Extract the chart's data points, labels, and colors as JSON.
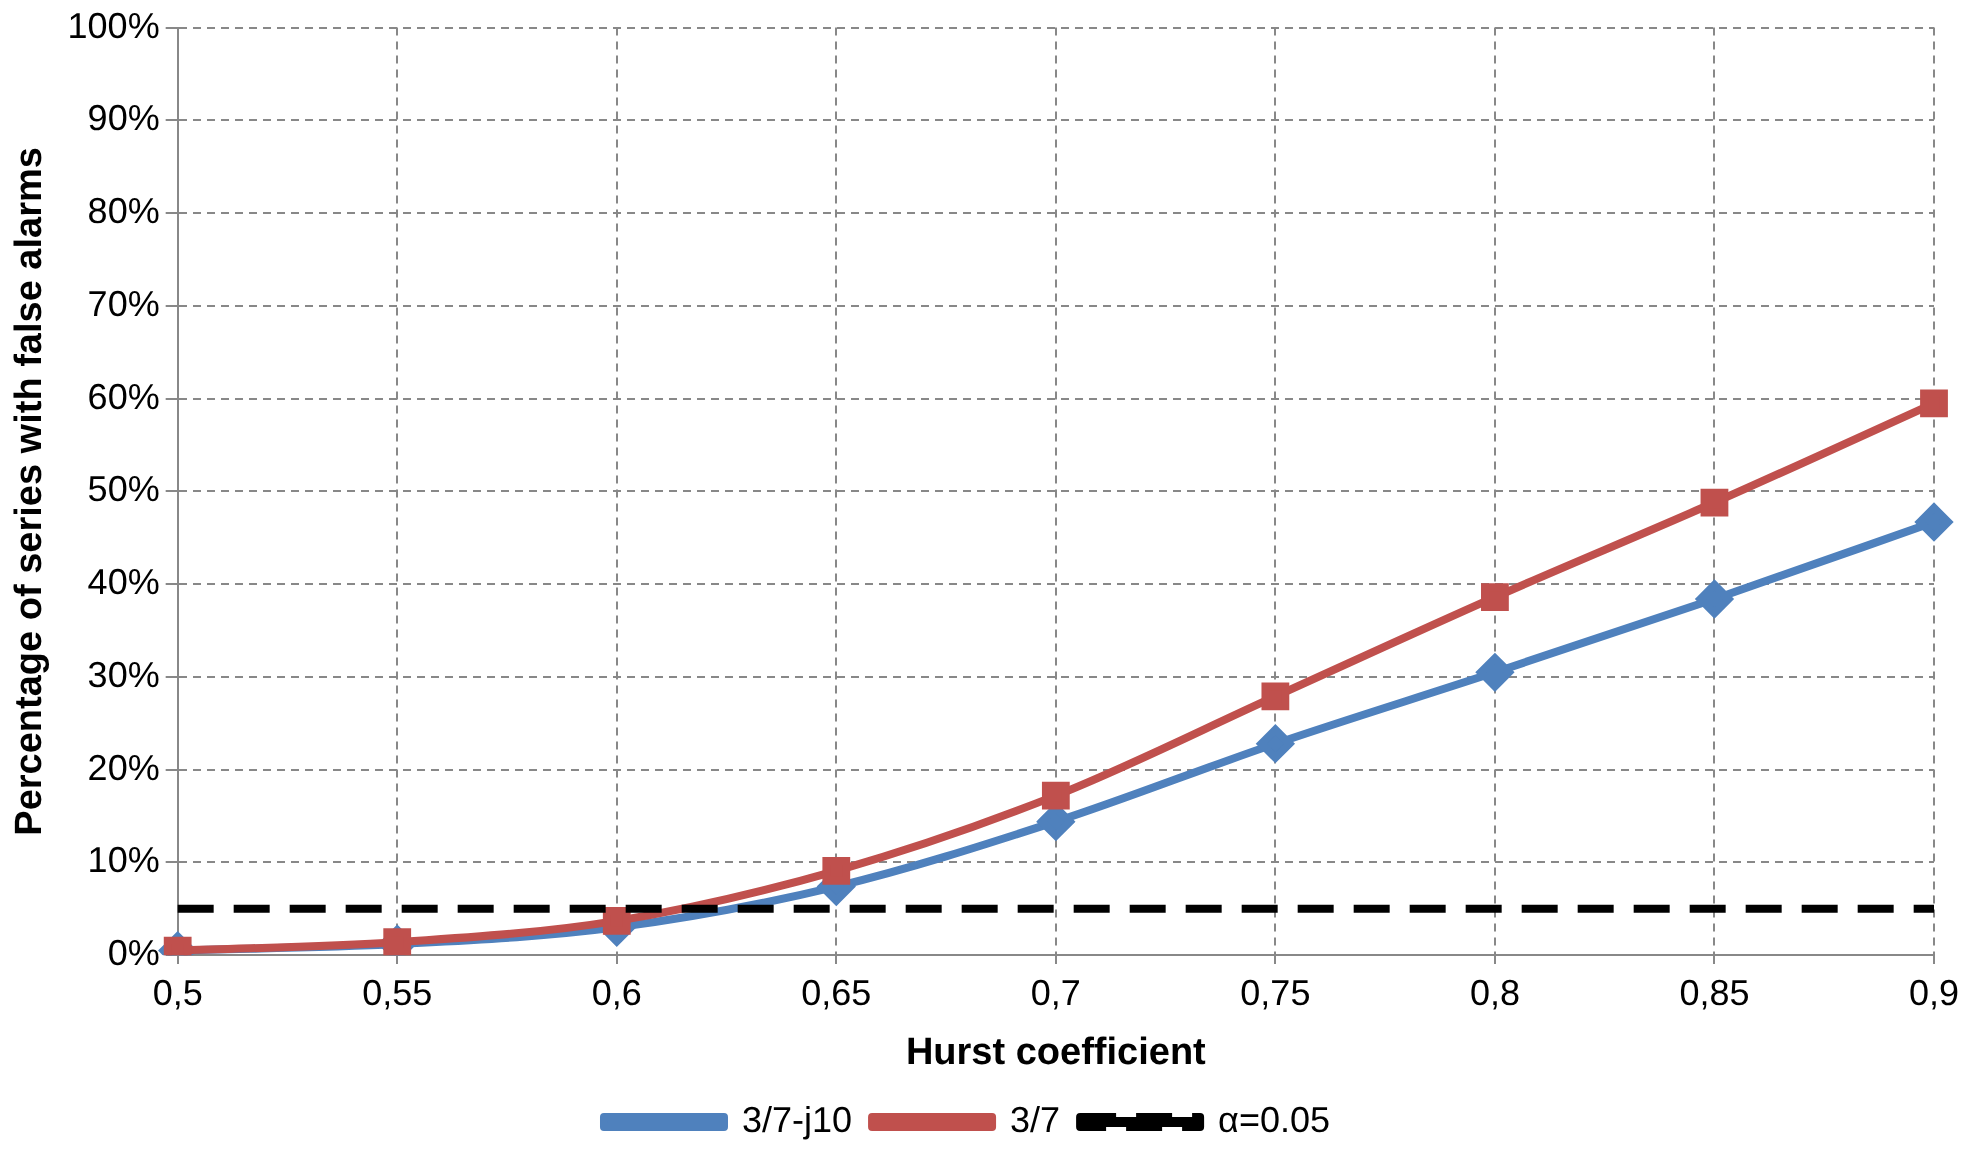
{
  "chart_data": {
    "type": "line",
    "xlabel": "Hurst coefficient",
    "ylabel": "Percentage of series with false alarms",
    "categories": [
      "0,5",
      "0,55",
      "0,6",
      "0,65",
      "0,7",
      "0,75",
      "0,8",
      "0,85",
      "0,9"
    ],
    "series": [
      {
        "name": "3/7-j10",
        "color": "#4f81bd",
        "marker": "diamond",
        "values": [
          0.5,
          1.2,
          3,
          7.4,
          14.4,
          22.8,
          30.5,
          38.4,
          46.7
        ]
      },
      {
        "name": "3/7",
        "color": "#c0504d",
        "marker": "square",
        "values": [
          0.5,
          1.4,
          3.7,
          9.1,
          17.2,
          27.9,
          38.6,
          48.8,
          59.5
        ]
      },
      {
        "name": "α=0.05",
        "color": "#000000",
        "marker": "none",
        "line_style": "dashed",
        "values": [
          5,
          5,
          5,
          5,
          5,
          5,
          5,
          5,
          5
        ]
      }
    ],
    "ylim": [
      0,
      100
    ],
    "yticks": [
      {
        "value": 0,
        "label": "0%"
      },
      {
        "value": 10,
        "label": "10%"
      },
      {
        "value": 20,
        "label": "20%"
      },
      {
        "value": 30,
        "label": "30%"
      },
      {
        "value": 40,
        "label": "40%"
      },
      {
        "value": 50,
        "label": "50%"
      },
      {
        "value": 60,
        "label": "60%"
      },
      {
        "value": 70,
        "label": "70%"
      },
      {
        "value": 80,
        "label": "80%"
      },
      {
        "value": 90,
        "label": "90%"
      },
      {
        "value": 100,
        "label": "100%"
      }
    ],
    "grid": true,
    "legend": "bottom"
  }
}
